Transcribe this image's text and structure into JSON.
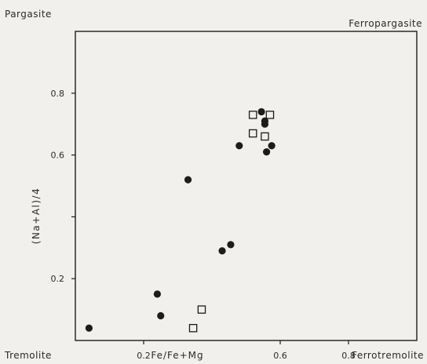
{
  "chart_data": {
    "type": "scatter",
    "corners": {
      "top_left": "Pargasite",
      "top_right": "Ferropargasite",
      "bottom_left": "Tremolite",
      "bottom_right": "Ferrotremolite"
    },
    "xlabel": "Fe/Fe+Mg",
    "ylabel": "(Na+Al)/4",
    "xlim": [
      0,
      1
    ],
    "ylim": [
      0,
      1
    ],
    "x_ticks": [
      {
        "value": 0.2,
        "label": "0.2"
      },
      {
        "value": 0.6,
        "label": "0.6"
      },
      {
        "value": 0.8,
        "label": "0.8"
      }
    ],
    "y_ticks": [
      {
        "value": 0.2,
        "label": "0.2"
      },
      {
        "value": 0.4,
        "label": ""
      },
      {
        "value": 0.6,
        "label": "0.6"
      },
      {
        "value": 0.8,
        "label": "0.8"
      }
    ],
    "grid": false,
    "legend": "none",
    "colors": {
      "ink": "#1c1c1c",
      "background": "#f1f0ec"
    },
    "series": [
      {
        "marker": "filled-circle",
        "points": [
          {
            "x": 0.04,
            "y": 0.04
          },
          {
            "x": 0.24,
            "y": 0.15
          },
          {
            "x": 0.25,
            "y": 0.08
          },
          {
            "x": 0.33,
            "y": 0.52
          },
          {
            "x": 0.43,
            "y": 0.29
          },
          {
            "x": 0.455,
            "y": 0.31
          },
          {
            "x": 0.48,
            "y": 0.63
          },
          {
            "x": 0.545,
            "y": 0.74
          },
          {
            "x": 0.555,
            "y": 0.71
          },
          {
            "x": 0.555,
            "y": 0.7
          },
          {
            "x": 0.56,
            "y": 0.61
          },
          {
            "x": 0.575,
            "y": 0.63
          }
        ]
      },
      {
        "marker": "open-square",
        "points": [
          {
            "x": 0.37,
            "y": 0.1
          },
          {
            "x": 0.345,
            "y": 0.04
          },
          {
            "x": 0.52,
            "y": 0.73
          },
          {
            "x": 0.57,
            "y": 0.73
          },
          {
            "x": 0.52,
            "y": 0.67
          },
          {
            "x": 0.555,
            "y": 0.66
          }
        ]
      }
    ]
  }
}
